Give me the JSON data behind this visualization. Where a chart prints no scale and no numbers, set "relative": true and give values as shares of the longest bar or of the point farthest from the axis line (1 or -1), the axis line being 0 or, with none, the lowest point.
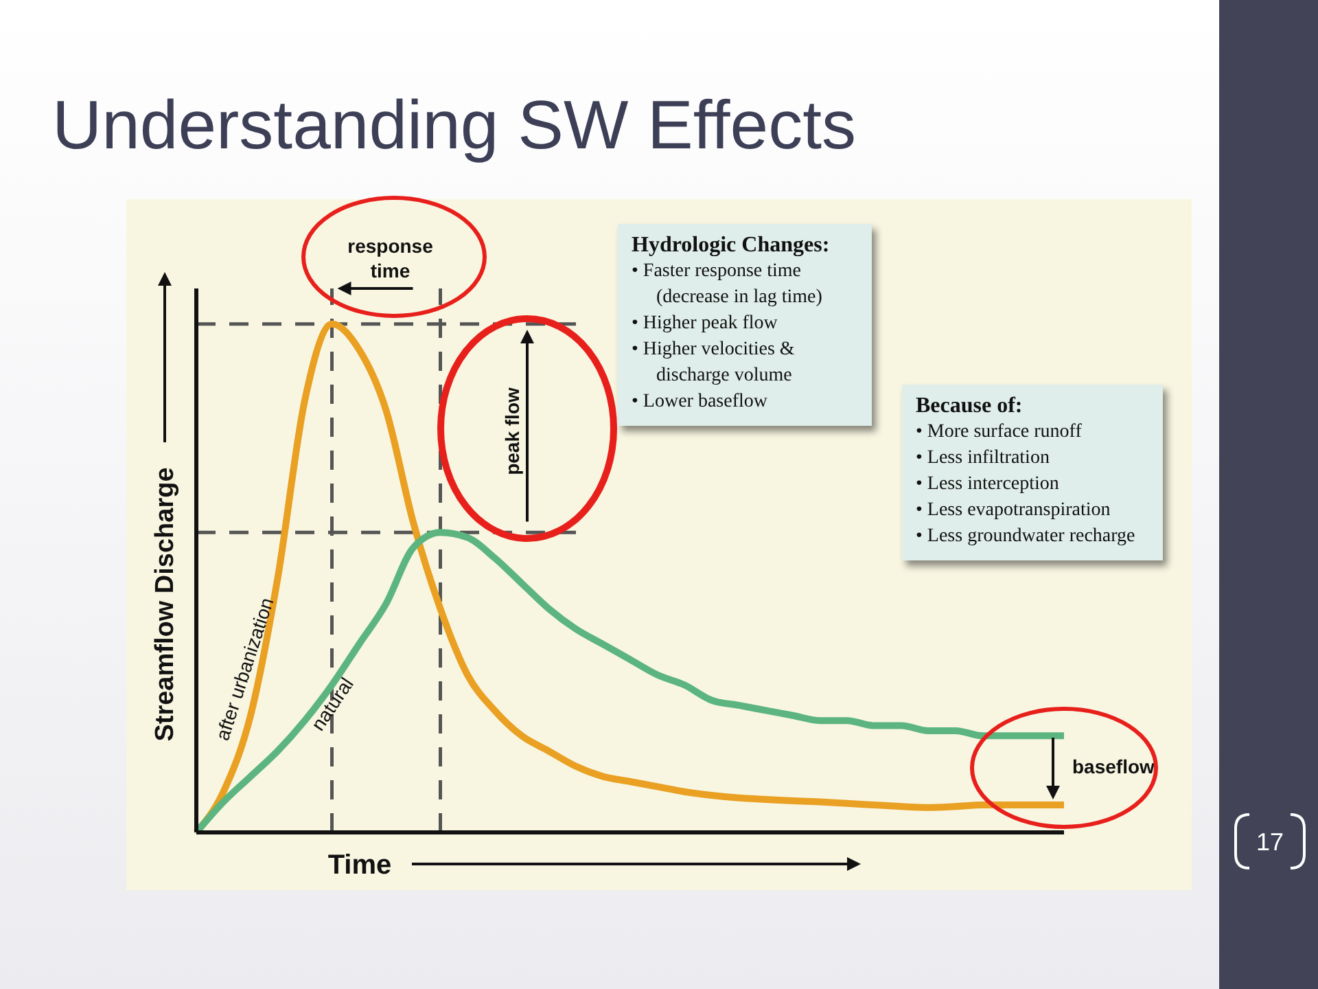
{
  "chart_data": {
    "type": "line",
    "title": "Understanding SW Effects",
    "xlabel": "Time",
    "ylabel": "Streamflow Discharge",
    "relative": true,
    "categories": [
      null,
      null,
      null,
      null,
      null,
      null,
      null,
      null,
      null,
      null,
      null,
      null,
      null,
      null,
      null,
      null,
      null,
      null,
      null,
      null,
      null,
      null,
      null,
      null,
      null,
      null,
      null,
      null,
      null,
      null,
      null,
      null,
      null
    ],
    "series": [
      {
        "name": "after urbanization",
        "color": "#e9a023",
        "values": [
          0,
          0.08,
          0.23,
          0.5,
          0.85,
          1,
          0.95,
          0.83,
          0.61,
          0.44,
          0.31,
          0.24,
          0.19,
          0.16,
          0.13,
          0.11,
          0.1,
          0.09,
          0.08,
          0.073,
          0.068,
          0.065,
          0.062,
          0.06,
          0.057,
          0.054,
          0.051,
          0.049,
          0.051,
          0.054,
          0.054,
          0.054,
          0.054
        ]
      },
      {
        "name": "natural",
        "color": "#5cb57f",
        "values": [
          0,
          0.06,
          0.11,
          0.16,
          0.22,
          0.29,
          0.37,
          0.45,
          0.56,
          0.59,
          0.58,
          0.54,
          0.49,
          0.44,
          0.4,
          0.37,
          0.34,
          0.31,
          0.29,
          0.26,
          0.25,
          0.24,
          0.23,
          0.22,
          0.22,
          0.21,
          0.21,
          0.2,
          0.2,
          0.19,
          0.19,
          0.19,
          0.19
        ]
      }
    ],
    "ref_lines": [
      {
        "axis": "y",
        "value": 1,
        "color": "#555555",
        "line_style": "dashed"
      },
      {
        "axis": "y",
        "value": 0.59,
        "color": "#555555",
        "line_style": "dashed"
      }
    ],
    "annotations": [
      "response time",
      "peak flow",
      "baseflow",
      "Hydrologic Changes:",
      "• Faster response time (decrease in lag time)",
      "• Higher peak flow",
      "• Higher velocities & discharge volume",
      "• Lower baseflow",
      "Because of:",
      "• More surface runoff",
      "• Less infiltration",
      "• Less interception",
      "• Less evapotranspiration",
      "• Less groundwater recharge",
      "17"
    ]
  }
}
